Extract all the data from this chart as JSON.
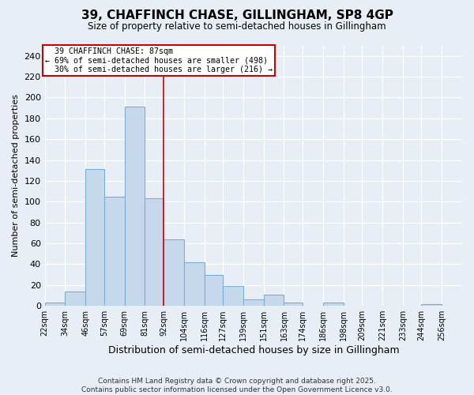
{
  "title": "39, CHAFFINCH CHASE, GILLINGHAM, SP8 4GP",
  "subtitle": "Size of property relative to semi-detached houses in Gillingham",
  "xlabel": "Distribution of semi-detached houses by size in Gillingham",
  "ylabel": "Number of semi-detached properties",
  "bar_labels": [
    "22sqm",
    "34sqm",
    "46sqm",
    "57sqm",
    "69sqm",
    "81sqm",
    "92sqm",
    "104sqm",
    "116sqm",
    "127sqm",
    "139sqm",
    "151sqm",
    "163sqm",
    "174sqm",
    "186sqm",
    "198sqm",
    "209sqm",
    "221sqm",
    "233sqm",
    "244sqm",
    "256sqm"
  ],
  "bar_values": [
    3,
    14,
    131,
    105,
    191,
    103,
    64,
    42,
    30,
    19,
    6,
    11,
    3,
    0,
    3,
    0,
    0,
    0,
    0,
    2,
    0
  ],
  "bar_color": "#c6d9ec",
  "bar_edge_color": "#7aafd4",
  "ylim": [
    0,
    250
  ],
  "yticks": [
    0,
    20,
    40,
    60,
    80,
    100,
    120,
    140,
    160,
    180,
    200,
    220,
    240
  ],
  "property_label": "39 CHAFFINCH CHASE: 87sqm",
  "smaller_pct": "69%",
  "smaller_count": 498,
  "larger_pct": "30%",
  "larger_count": 216,
  "vline_x": 92,
  "vline_color": "#cc0000",
  "annotation_box_color": "#cc0000",
  "background_color": "#e8eef5",
  "footer": "Contains HM Land Registry data © Crown copyright and database right 2025.\nContains public sector information licensed under the Open Government Licence v3.0.",
  "bin_edges": [
    22,
    34,
    46,
    57,
    69,
    81,
    92,
    104,
    116,
    127,
    139,
    151,
    163,
    174,
    186,
    198,
    209,
    221,
    233,
    244,
    256,
    268
  ]
}
